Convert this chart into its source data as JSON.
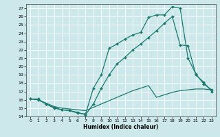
{
  "xlabel": "Humidex (Indice chaleur)",
  "xlim": [
    -0.5,
    23.5
  ],
  "ylim": [
    14,
    27.5
  ],
  "yticks": [
    14,
    15,
    16,
    17,
    18,
    19,
    20,
    21,
    22,
    23,
    24,
    25,
    26,
    27
  ],
  "xticks": [
    0,
    1,
    2,
    3,
    4,
    5,
    6,
    7,
    8,
    9,
    10,
    11,
    12,
    13,
    14,
    15,
    16,
    17,
    18,
    19,
    20,
    21,
    22,
    23
  ],
  "color": "#1a7a6e",
  "bg_color": "#cce8eb",
  "grid_color": "#b0d4d8",
  "line1_x": [
    0,
    1,
    2,
    3,
    4,
    5,
    6,
    7,
    8,
    9,
    10,
    11,
    12,
    13,
    14,
    15,
    16,
    17,
    18,
    19,
    20,
    21,
    22,
    23
  ],
  "line1_y": [
    16.1,
    16.0,
    15.5,
    15.0,
    14.8,
    14.7,
    14.4,
    14.3,
    17.4,
    19.0,
    22.2,
    22.7,
    23.3,
    23.8,
    24.1,
    25.9,
    26.2,
    26.2,
    27.2,
    27.0,
    21.0,
    19.1,
    17.9,
    17.2
  ],
  "line2_x": [
    0,
    1,
    2,
    3,
    4,
    5,
    6,
    7,
    8,
    9,
    10,
    11,
    12,
    13,
    14,
    15,
    16,
    17,
    18,
    19,
    20,
    21,
    22,
    23
  ],
  "line2_y": [
    16.1,
    16.1,
    15.5,
    15.1,
    14.8,
    14.7,
    14.5,
    14.2,
    15.5,
    17.4,
    19.0,
    20.3,
    21.1,
    22.0,
    22.7,
    23.5,
    24.3,
    25.2,
    26.0,
    22.6,
    22.5,
    19.0,
    18.1,
    17.0
  ],
  "line3_x": [
    0,
    1,
    2,
    3,
    4,
    5,
    6,
    7,
    8,
    9,
    10,
    11,
    12,
    13,
    14,
    15,
    16,
    17,
    18,
    19,
    20,
    21,
    22,
    23
  ],
  "line3_y": [
    16.1,
    16.0,
    15.6,
    15.2,
    15.0,
    14.9,
    14.8,
    14.7,
    15.1,
    15.5,
    15.9,
    16.3,
    16.7,
    17.1,
    17.4,
    17.7,
    16.3,
    16.6,
    16.9,
    17.1,
    17.2,
    17.3,
    17.3,
    17.2
  ]
}
